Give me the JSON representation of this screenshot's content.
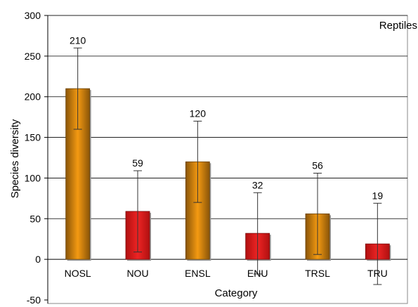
{
  "chart_data": {
    "type": "bar",
    "title": "",
    "panel_label": "Reptiles",
    "xlabel": "Category",
    "ylabel": "Species diversity",
    "ylim": [
      -50,
      300
    ],
    "yticks": [
      -50,
      0,
      50,
      100,
      150,
      200,
      250,
      300
    ],
    "grid": true,
    "legend": "none",
    "categories": [
      "NOSL",
      "NOU",
      "ENSL",
      "ENU",
      "TRSL",
      "TRU"
    ],
    "values": [
      210,
      59,
      120,
      32,
      56,
      19
    ],
    "data_labels": [
      "210",
      "59",
      "120",
      "32",
      "56",
      "19"
    ],
    "error": [
      50,
      50,
      50,
      50,
      50,
      50
    ],
    "bar_colors": [
      "#d98c0f",
      "#dd1f1f",
      "#d98c0f",
      "#dd1f1f",
      "#d98c0f",
      "#dd1f1f"
    ]
  }
}
